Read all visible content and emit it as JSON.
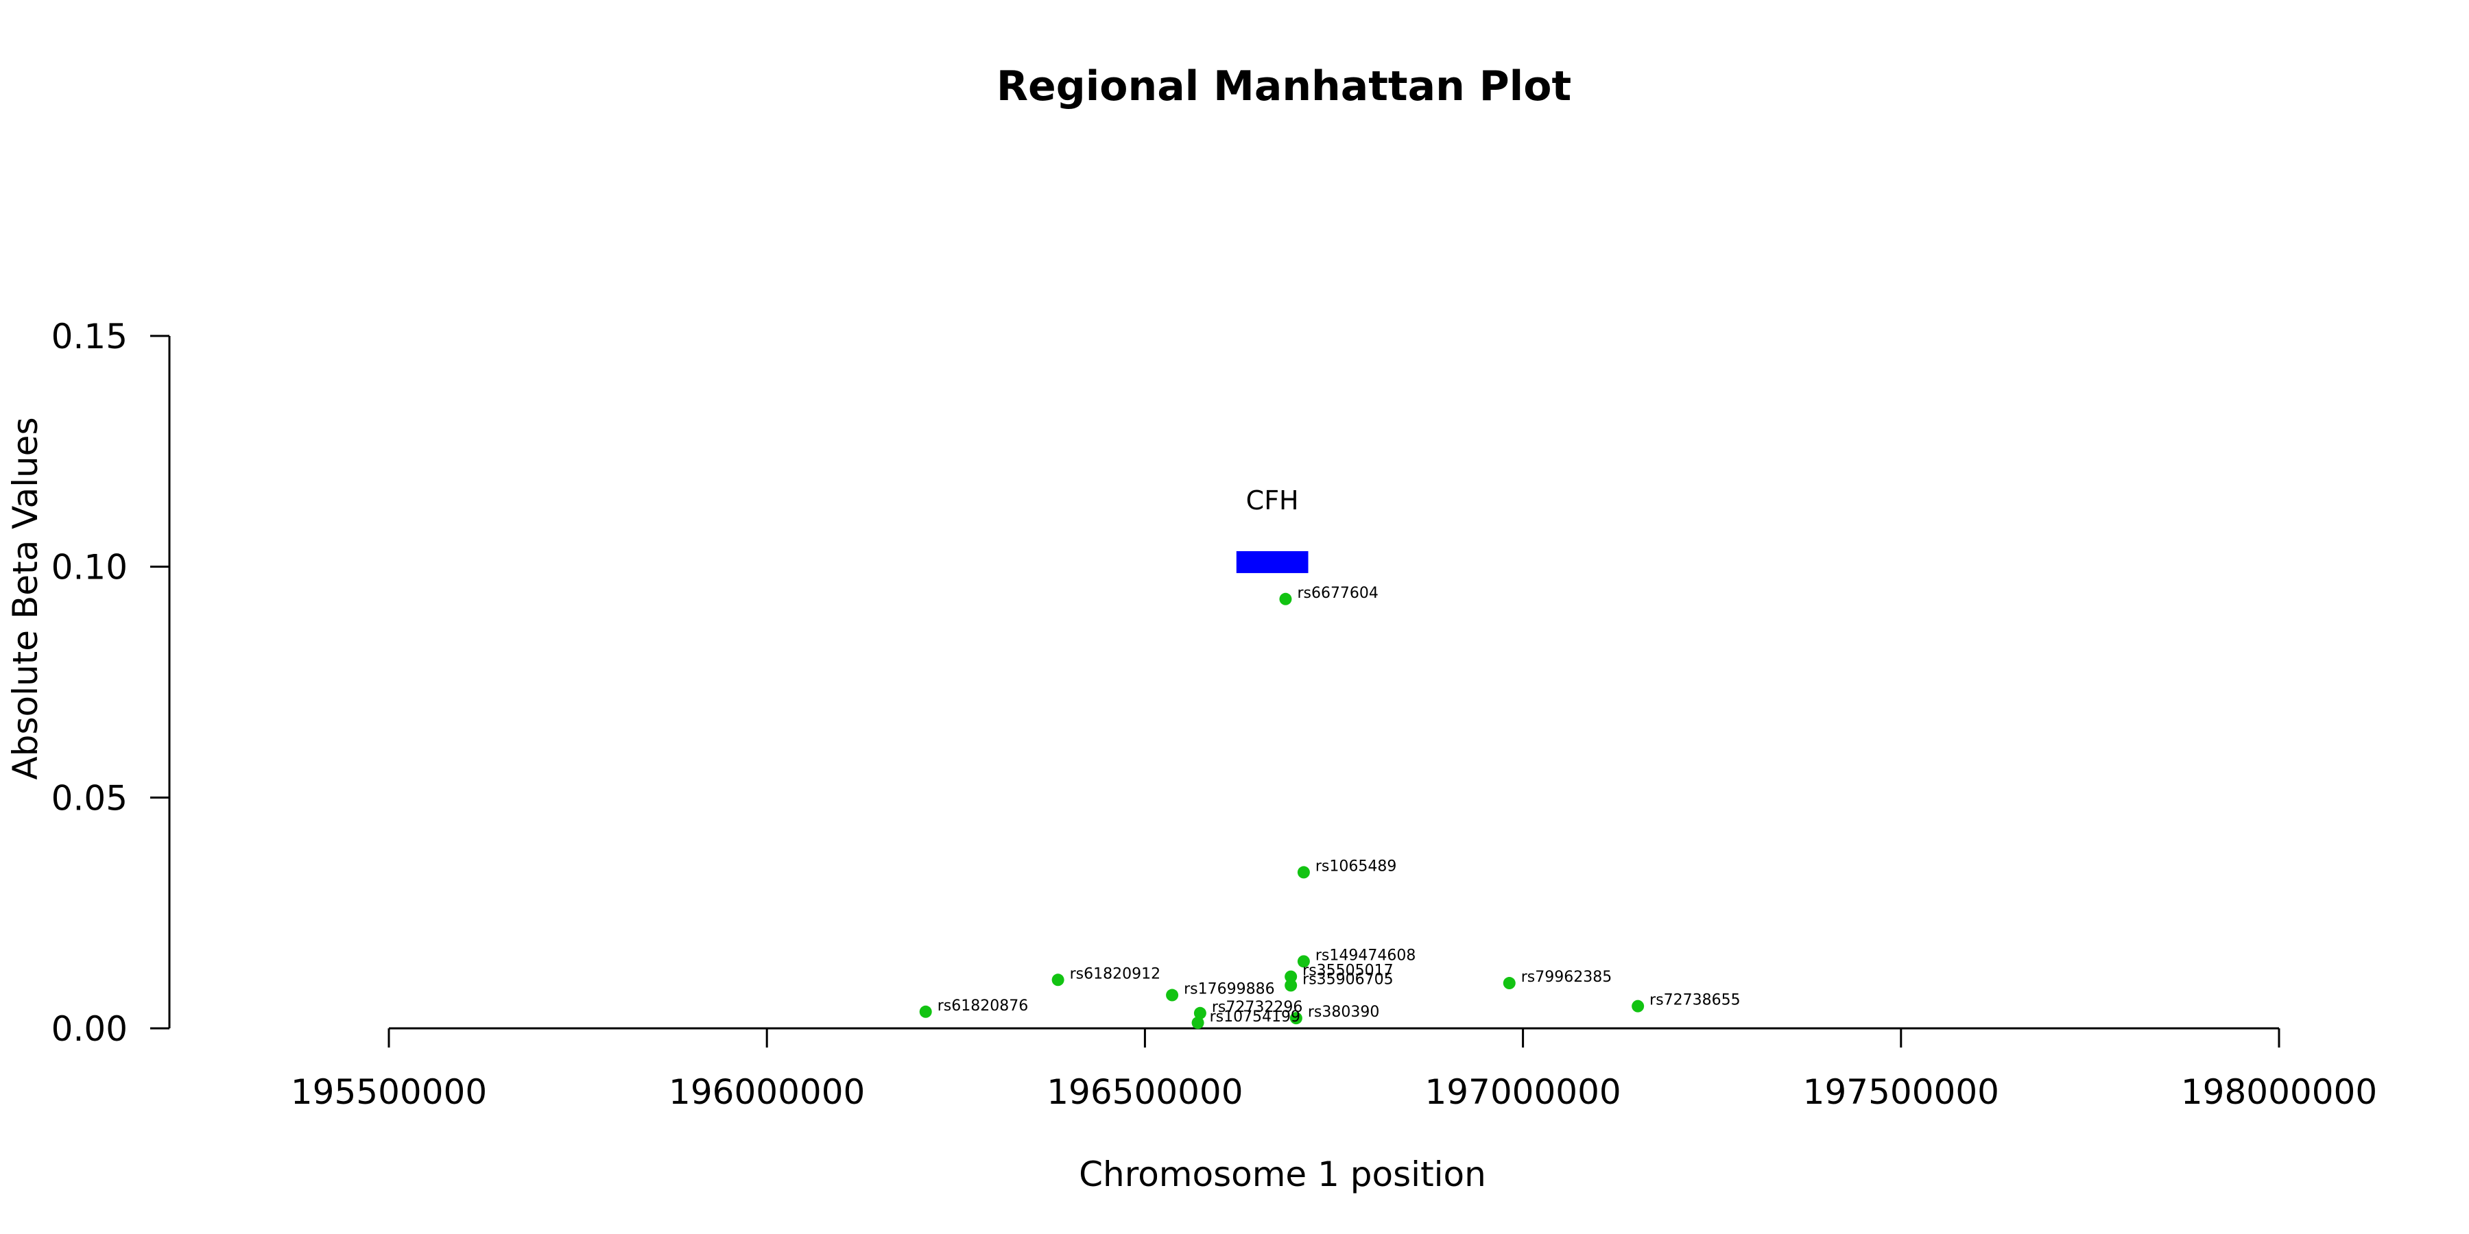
{
  "chart_data": {
    "type": "scatter",
    "title": "Regional Manhattan Plot",
    "xlabel": "Chromosome 1 position",
    "ylabel": "Absolute Beta Values",
    "xlim": [
      195500000,
      198000000
    ],
    "ylim": [
      0,
      0.15
    ],
    "x_ticks": [
      195500000,
      196000000,
      196500000,
      197000000,
      197500000,
      198000000
    ],
    "x_tick_labels": [
      "195500000",
      "196000000",
      "196500000",
      "197000000",
      "197500000",
      "198000000"
    ],
    "y_ticks": [
      0,
      0.05,
      0.1,
      0.15
    ],
    "y_tick_labels": [
      "0.00",
      "0.05",
      "0.10",
      "0.15"
    ],
    "grid": false,
    "point_color": "#12c312",
    "gene_color": "#0000ff",
    "genes": [
      {
        "name": "CFH",
        "start": 196621000,
        "end": 196716000,
        "y": 0.101
      }
    ],
    "points": [
      {
        "snp": "rs6677604",
        "x": 196686000,
        "y": 0.093
      },
      {
        "snp": "rs1065489",
        "x": 196710000,
        "y": 0.0338
      },
      {
        "snp": "rs149474608",
        "x": 196710000,
        "y": 0.0145
      },
      {
        "snp": "rs35505017",
        "x": 196693000,
        "y": 0.0112
      },
      {
        "snp": "rs35906705",
        "x": 196693000,
        "y": 0.0093
      },
      {
        "snp": "rs61820912",
        "x": 196385000,
        "y": 0.0105
      },
      {
        "snp": "rs79962385",
        "x": 196982000,
        "y": 0.0098
      },
      {
        "snp": "rs17699886",
        "x": 196536000,
        "y": 0.0072
      },
      {
        "snp": "rs72738655",
        "x": 197152000,
        "y": 0.0048
      },
      {
        "snp": "rs61820876",
        "x": 196210000,
        "y": 0.0036
      },
      {
        "snp": "rs72732296",
        "x": 196573000,
        "y": 0.0033
      },
      {
        "snp": "rs380390",
        "x": 196700000,
        "y": 0.0022
      },
      {
        "snp": "rs10754199",
        "x": 196570000,
        "y": 0.0012
      }
    ]
  }
}
